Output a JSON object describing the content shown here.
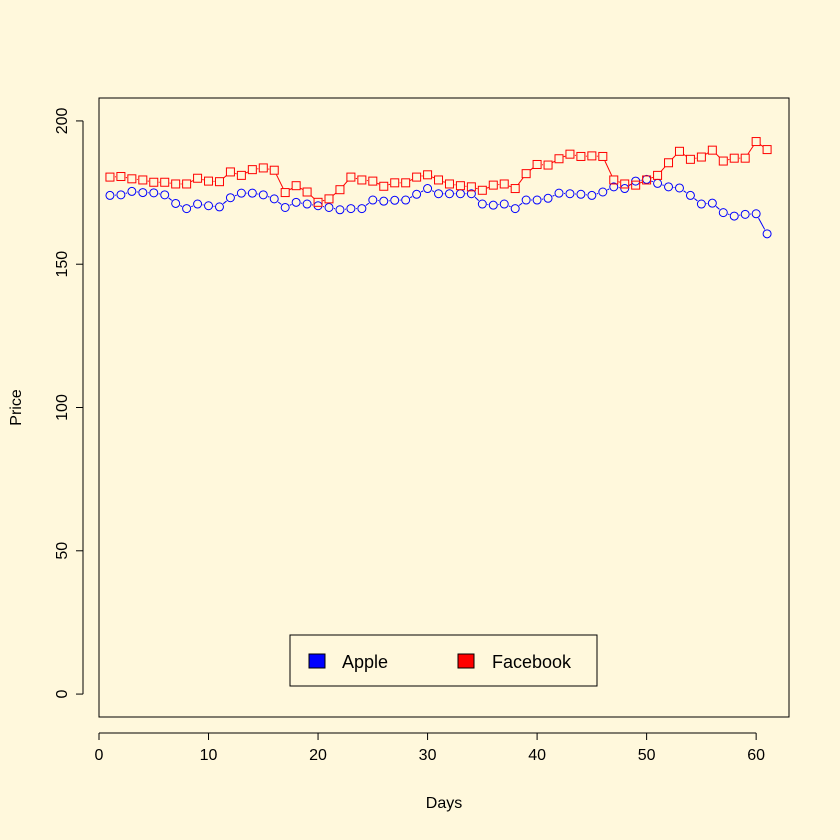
{
  "chart_data": {
    "type": "line",
    "title": "",
    "xlabel": "Days",
    "ylabel": "Price",
    "xlim": [
      0,
      63
    ],
    "ylim": [
      -8,
      208
    ],
    "x_ticks": [
      0,
      10,
      20,
      30,
      40,
      50,
      60
    ],
    "y_ticks": [
      0,
      50,
      100,
      150,
      200
    ],
    "grid": false,
    "background_color": "#FFF8DC",
    "legend_position": "bottom-center",
    "x": [
      1,
      2,
      3,
      4,
      5,
      6,
      7,
      8,
      9,
      10,
      11,
      12,
      13,
      14,
      15,
      16,
      17,
      18,
      19,
      20,
      21,
      22,
      23,
      24,
      25,
      26,
      27,
      28,
      29,
      30,
      31,
      32,
      33,
      34,
      35,
      36,
      37,
      38,
      39,
      40,
      41,
      42,
      43,
      44,
      45,
      46,
      47,
      48,
      49,
      50,
      51,
      52,
      53,
      54,
      55,
      56,
      57,
      58,
      59,
      60,
      61
    ],
    "series": [
      {
        "name": "Apple",
        "color": "#0000FF",
        "marker": "circle",
        "values": [
          174.0,
          174.2,
          175.4,
          175.0,
          174.9,
          174.2,
          171.2,
          169.4,
          171.0,
          170.4,
          170.0,
          173.2,
          174.8,
          174.8,
          174.2,
          172.8,
          169.8,
          171.6,
          171.0,
          170.4,
          169.8,
          169.0,
          169.4,
          169.4,
          172.4,
          172.0,
          172.3,
          172.4,
          174.4,
          176.4,
          174.6,
          174.6,
          174.6,
          174.6,
          171.0,
          170.6,
          171.0,
          169.4,
          172.4,
          172.4,
          173.0,
          174.8,
          174.6,
          174.4,
          174.0,
          175.2,
          177.0,
          176.4,
          179.0,
          179.6,
          178.2,
          177.0,
          176.6,
          174.0,
          171.0,
          171.3,
          168.0,
          166.8,
          167.4,
          167.6,
          160.6
        ]
      },
      {
        "name": "Facebook",
        "color": "#FF0000",
        "marker": "square",
        "values": [
          180.4,
          180.6,
          179.8,
          179.4,
          178.6,
          178.6,
          178.0,
          178.0,
          180.0,
          179.0,
          178.8,
          182.2,
          181.0,
          183.0,
          183.6,
          182.8,
          175.0,
          177.4,
          175.2,
          171.6,
          172.8,
          176.0,
          180.4,
          179.4,
          179.0,
          177.2,
          178.4,
          178.4,
          180.4,
          181.2,
          179.4,
          178.0,
          177.4,
          177.0,
          175.8,
          177.6,
          178.0,
          176.4,
          181.6,
          184.8,
          184.6,
          186.8,
          188.4,
          187.6,
          187.8,
          187.6,
          179.4,
          178.0,
          177.6,
          179.4,
          181.0,
          185.4,
          189.4,
          186.6,
          187.4,
          189.8,
          186.0,
          187.0,
          187.0,
          192.8,
          190.0
        ]
      }
    ]
  }
}
